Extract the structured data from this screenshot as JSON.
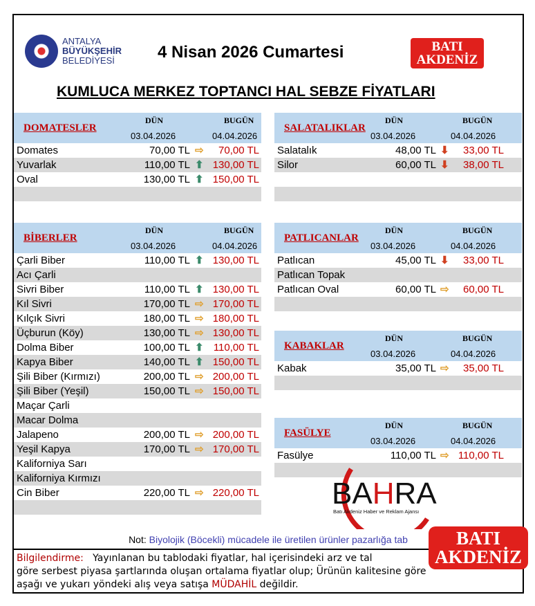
{
  "header": {
    "logo_lines": [
      "ANTALYA",
      "BÜYÜKŞEHİR",
      "BELEDİYESİ"
    ],
    "date": "4 Nisan 2026 Cumartesi",
    "brand": [
      "BATI",
      "AKDENİZ"
    ],
    "title": "KUMLUCA MERKEZ TOPTANCI HAL SEBZE FİYATLARI"
  },
  "labels": {
    "yesterday": "DÜN",
    "today": "BUGÜN",
    "yesterday_date": "03.04.2026",
    "today_date": "04.04.2026"
  },
  "colors": {
    "header_bg": "#bdd7ee",
    "stripe": "#d9d9d9",
    "price_today": "#c00000",
    "up": "#3a8a6a",
    "down": "#d04020",
    "same": "#e0a030"
  },
  "sections": [
    {
      "name": "DOMATESLER",
      "side": "left",
      "items": [
        {
          "name": "Domates",
          "yesterday": "70,00 TL",
          "trend": "same",
          "today": "70,00 TL"
        },
        {
          "name": "Yuvarlak",
          "yesterday": "110,00 TL",
          "trend": "up",
          "today": "130,00 TL"
        },
        {
          "name": "Oval",
          "yesterday": "130,00 TL",
          "trend": "up",
          "today": "150,00 TL"
        },
        {
          "name": ""
        }
      ]
    },
    {
      "name": "SALATALIKLAR",
      "side": "right",
      "items": [
        {
          "name": "Salatalık",
          "yesterday": "48,00 TL",
          "trend": "down",
          "today": "33,00 TL"
        },
        {
          "name": "Silor",
          "yesterday": "60,00 TL",
          "trend": "down",
          "today": "38,00 TL"
        },
        {
          "name": ""
        },
        {
          "name": ""
        }
      ]
    },
    {
      "name": "BİBERLER",
      "side": "left",
      "items": [
        {
          "name": "Çarli Biber",
          "yesterday": "110,00 TL",
          "trend": "up",
          "today": "130,00 TL"
        },
        {
          "name": "Acı Çarli"
        },
        {
          "name": "Sivri Biber",
          "yesterday": "110,00 TL",
          "trend": "up",
          "today": "130,00 TL"
        },
        {
          "name": "Kıl Sivri",
          "yesterday": "170,00 TL",
          "trend": "same",
          "today": "170,00 TL"
        },
        {
          "name": "Kılçık Sivri",
          "yesterday": "180,00 TL",
          "trend": "same",
          "today": "180,00 TL"
        },
        {
          "name": "Üçburun (Köy)",
          "yesterday": "130,00 TL",
          "trend": "same",
          "today": "130,00 TL"
        },
        {
          "name": "Dolma Biber",
          "yesterday": "100,00 TL",
          "trend": "up",
          "today": "110,00 TL"
        },
        {
          "name": "Kapya Biber",
          "yesterday": "140,00 TL",
          "trend": "up",
          "today": "150,00 TL"
        },
        {
          "name": "Şili Biber (Kırmızı)",
          "yesterday": "200,00 TL",
          "trend": "same",
          "today": "200,00 TL"
        },
        {
          "name": "Şili Biber (Yeşil)",
          "yesterday": "150,00 TL",
          "trend": "same",
          "today": "150,00 TL"
        },
        {
          "name": "Maçar Çarli"
        },
        {
          "name": "Macar Dolma"
        },
        {
          "name": "Jalapeno",
          "yesterday": "200,00 TL",
          "trend": "same",
          "today": "200,00 TL"
        },
        {
          "name": "Yeşil Kapya",
          "yesterday": "170,00 TL",
          "trend": "same",
          "today": "170,00 TL"
        },
        {
          "name": "Kaliforniya Sarı"
        },
        {
          "name": "Kaliforniya Kırmızı"
        },
        {
          "name": "Cin Biber",
          "yesterday": "220,00 TL",
          "trend": "same",
          "today": "220,00 TL"
        },
        {
          "name": ""
        },
        {
          "name": ""
        }
      ]
    },
    {
      "name": "PATLICANLAR",
      "side": "right",
      "items": [
        {
          "name": "Patlıcan",
          "yesterday": "45,00 TL",
          "trend": "down",
          "today": "33,00 TL"
        },
        {
          "name": "Patlıcan Topak"
        },
        {
          "name": "Patlıcan Oval",
          "yesterday": "60,00 TL",
          "trend": "same",
          "today": "60,00 TL"
        },
        {
          "name": ""
        }
      ]
    },
    {
      "name": "KABAKLAR",
      "side": "right",
      "items": [
        {
          "name": "Kabak",
          "yesterday": "35,00 TL",
          "trend": "same",
          "today": "35,00 TL"
        },
        {
          "name": ""
        }
      ]
    },
    {
      "name": "FASÜLYE",
      "side": "right",
      "items": [
        {
          "name": "Fasülye",
          "yesterday": "110,00 TL",
          "trend": "same",
          "today": "110,00 TL"
        },
        {
          "name": ""
        }
      ]
    }
  ],
  "watermark": {
    "name": "BAHRA",
    "tagline": "Batı Akdeniz Haber ve Reklam Ajansı"
  },
  "footer": {
    "note_label": "Not:",
    "note_text": "Biyolojik (Böcekli) mücadele ile üretilen ürünler pazarlığa tab",
    "info_label": "Bilgilendirme:",
    "info_text1": "Yayınlanan bu tablodaki fiyatlar, hal içerisindeki arz ve tal",
    "info_text2": "göre serbest piyasa şartlarında oluşan ortalama fiyatlar olup; Ürünün kalitesine göre",
    "info_text3a": "aşağı ve yukarı yöndeki alış veya satışa",
    "info_highlight": "MÜDAHİL",
    "info_text3b": "değildir."
  }
}
